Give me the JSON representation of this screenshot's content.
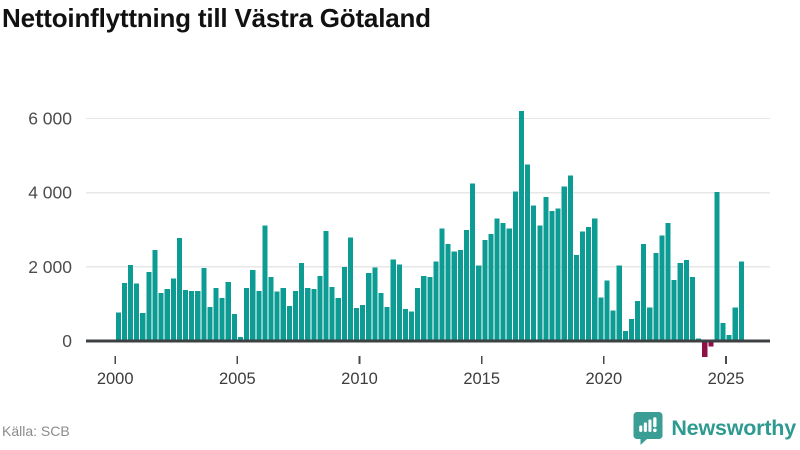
{
  "title": "Nettoinflyttning till Västra Götaland",
  "source": "Källa: SCB",
  "logo": {
    "brand": "Newsworthy",
    "icon": "bar-chart-speech-bubble-icon"
  },
  "colors": {
    "bar": "#0d9c94",
    "bar_negative": "#8e1045",
    "grid": "#e7e7e7",
    "axis": "#3c4043",
    "x_label": "#3d3d3d",
    "y_label": "#4d4d4d",
    "title": "#111111",
    "source": "#8b8b8b",
    "logo": "#2e9a90"
  },
  "chart_data": {
    "type": "bar",
    "title": "Nettoinflyttning till Västra Götaland",
    "xlabel": "",
    "ylabel": "",
    "period": "quarterly",
    "start_year": 2000,
    "grid": "horizontal",
    "legend": "none",
    "ylim": [
      -500,
      6500
    ],
    "x_ticks": [
      "2000",
      "2005",
      "2010",
      "2015",
      "2020",
      "2025"
    ],
    "y_ticks": [
      0,
      2000,
      4000,
      6000
    ],
    "y_tick_labels": [
      "0",
      "2 000",
      "4 000",
      "6 000"
    ],
    "values": [
      770,
      1560,
      2050,
      1550,
      760,
      1860,
      2460,
      1300,
      1400,
      1680,
      2780,
      1380,
      1350,
      1350,
      1970,
      920,
      1430,
      1160,
      1590,
      730,
      110,
      1430,
      1920,
      1350,
      3110,
      1730,
      1330,
      1430,
      950,
      1350,
      2110,
      1430,
      1400,
      1760,
      2970,
      1460,
      1160,
      2000,
      2790,
      890,
      970,
      1840,
      1980,
      1300,
      920,
      2200,
      2060,
      860,
      800,
      1430,
      1760,
      1730,
      2140,
      3030,
      2620,
      2410,
      2450,
      3000,
      4250,
      2040,
      2730,
      2880,
      3300,
      3180,
      3040,
      4030,
      6200,
      4760,
      3660,
      3110,
      3880,
      3510,
      3570,
      4170,
      4460,
      2320,
      2950,
      3070,
      3300,
      1180,
      1630,
      820,
      2030,
      270,
      590,
      1080,
      2620,
      910,
      2370,
      2840,
      3180,
      1650,
      2100,
      2190,
      1720,
      70,
      -430,
      -150,
      4020,
      480,
      160,
      900,
      2150
    ]
  }
}
